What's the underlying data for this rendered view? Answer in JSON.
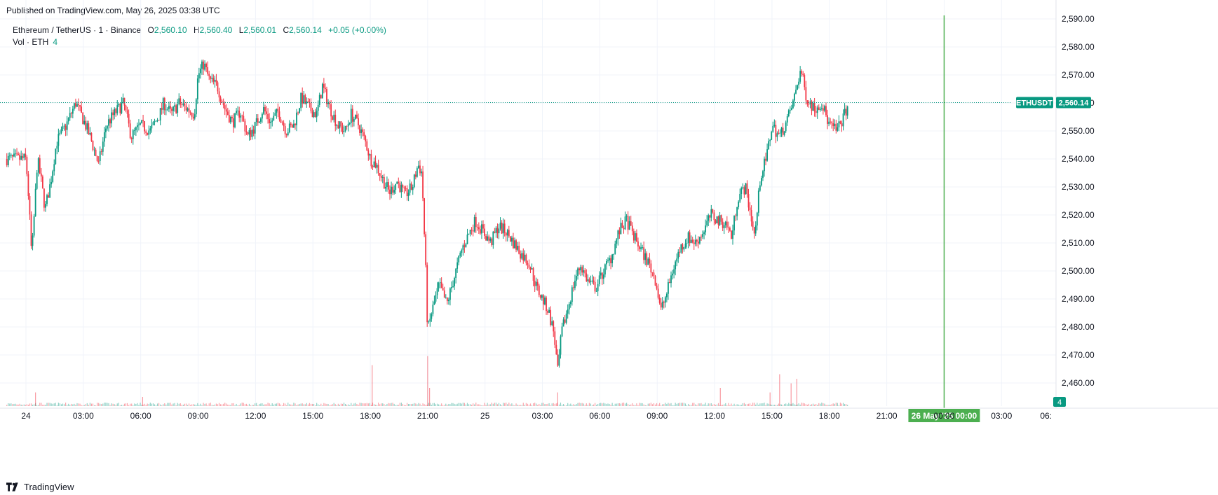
{
  "header": {
    "published": "Published on TradingView.com, May 26, 2025 03:38 UTC"
  },
  "legend": {
    "symbol": "Ethereum / TetherUS · 1 · Binance",
    "o_label": "O",
    "o_value": "2,560.10",
    "h_label": "H",
    "h_value": "2,560.40",
    "l_label": "L",
    "l_value": "2,560.01",
    "c_label": "C",
    "c_value": "2,560.14",
    "change": "+0.05 (+0.00%)",
    "vol_label": "Vol · ETH",
    "vol_value": "4"
  },
  "footer": {
    "brand": "TradingView"
  },
  "colors": {
    "up": "#089981",
    "down": "#f23645",
    "crosshair": "#22ab94",
    "grid": "#f0f3fa",
    "price_tag": "#089981",
    "time_tag": "#4caf50"
  },
  "chart_data": {
    "type": "candlestick",
    "symbol": "ETHUSDT",
    "interval": "1",
    "last_price_label": "2,560.14",
    "last_price": 2560.14,
    "volume_label": "4",
    "ylim": [
      2455,
      2590
    ],
    "y_ticks": [
      "2,460.00",
      "2,470.00",
      "2,480.00",
      "2,490.00",
      "2,500.00",
      "2,510.00",
      "2,520.00",
      "2,530.00",
      "2,540.00",
      "2,550.00",
      "2,560.00",
      "2,570.00",
      "2,580.00",
      "2,590.00"
    ],
    "x_ticks": [
      "24",
      "03:00",
      "06:00",
      "09:00",
      "12:00",
      "15:00",
      "18:00",
      "21:00",
      "25",
      "03:00",
      "06:00",
      "09:00",
      "12:00",
      "15:00",
      "18:00",
      "21:00",
      "00:00",
      "03:00",
      "06:"
    ],
    "crosshair_time_label": "26 May '25   00:00",
    "price_path": [
      [
        0,
        2540
      ],
      [
        0.15,
        2525
      ],
      [
        0.3,
        2505
      ],
      [
        0.45,
        2522
      ],
      [
        0.6,
        2540
      ],
      [
        0.8,
        2532
      ],
      [
        1.0,
        2522
      ],
      [
        1.3,
        2532
      ],
      [
        1.6,
        2546
      ],
      [
        2.1,
        2552
      ],
      [
        2.6,
        2560
      ],
      [
        3.0,
        2554
      ],
      [
        3.4,
        2547
      ],
      [
        3.8,
        2538
      ],
      [
        4.2,
        2552
      ],
      [
        4.6,
        2556
      ],
      [
        5.1,
        2560
      ],
      [
        5.5,
        2548
      ],
      [
        6.0,
        2552
      ],
      [
        6.5,
        2550
      ],
      [
        7.0,
        2556
      ],
      [
        7.2,
        2560
      ],
      [
        7.6,
        2556
      ],
      [
        8.0,
        2560
      ],
      [
        8.4,
        2558
      ],
      [
        8.8,
        2556
      ],
      [
        9.0,
        2570
      ],
      [
        9.3,
        2574
      ],
      [
        9.6,
        2568
      ],
      [
        10.0,
        2566
      ],
      [
        10.4,
        2558
      ],
      [
        10.8,
        2553
      ],
      [
        11.2,
        2557
      ],
      [
        11.6,
        2548
      ],
      [
        12.0,
        2552
      ],
      [
        12.4,
        2558
      ],
      [
        12.8,
        2553
      ],
      [
        13.2,
        2557
      ],
      [
        13.6,
        2550
      ],
      [
        14.0,
        2552
      ],
      [
        14.4,
        2562
      ],
      [
        14.8,
        2558
      ],
      [
        15.2,
        2556
      ],
      [
        15.5,
        2566
      ],
      [
        15.9,
        2558
      ],
      [
        16.3,
        2552
      ],
      [
        16.7,
        2550
      ],
      [
        17.0,
        2556
      ],
      [
        17.4,
        2552
      ],
      [
        17.8,
        2545
      ],
      [
        18.0,
        2540
      ],
      [
        18.3,
        2538
      ],
      [
        18.7,
        2532
      ],
      [
        19.0,
        2528
      ],
      [
        19.4,
        2532
      ],
      [
        19.8,
        2527
      ],
      [
        20.2,
        2530
      ],
      [
        20.5,
        2538
      ],
      [
        20.7,
        2535
      ],
      [
        20.9,
        2500
      ],
      [
        21.0,
        2478
      ],
      [
        21.2,
        2485
      ],
      [
        21.6,
        2495
      ],
      [
        22.0,
        2488
      ],
      [
        22.4,
        2498
      ],
      [
        22.8,
        2508
      ],
      [
        23.2,
        2514
      ],
      [
        23.5,
        2518
      ],
      [
        23.9,
        2514
      ],
      [
        24.3,
        2510
      ],
      [
        24.7,
        2516
      ],
      [
        25.1,
        2514
      ],
      [
        25.5,
        2510
      ],
      [
        25.9,
        2506
      ],
      [
        26.3,
        2503
      ],
      [
        26.7,
        2494
      ],
      [
        27.0,
        2490
      ],
      [
        27.3,
        2486
      ],
      [
        27.6,
        2478
      ],
      [
        27.8,
        2464
      ],
      [
        28.0,
        2478
      ],
      [
        28.3,
        2486
      ],
      [
        28.7,
        2497
      ],
      [
        29.0,
        2502
      ],
      [
        29.4,
        2496
      ],
      [
        29.8,
        2494
      ],
      [
        30.2,
        2500
      ],
      [
        30.6,
        2505
      ],
      [
        31.0,
        2514
      ],
      [
        31.4,
        2518
      ],
      [
        31.8,
        2512
      ],
      [
        32.2,
        2507
      ],
      [
        32.6,
        2502
      ],
      [
        32.9,
        2497
      ],
      [
        33.2,
        2486
      ],
      [
        33.5,
        2492
      ],
      [
        33.8,
        2500
      ],
      [
        34.2,
        2508
      ],
      [
        34.6,
        2512
      ],
      [
        35.0,
        2510
      ],
      [
        35.4,
        2514
      ],
      [
        35.8,
        2520
      ],
      [
        36.2,
        2518
      ],
      [
        36.6,
        2517
      ],
      [
        36.9,
        2512
      ],
      [
        37.2,
        2526
      ],
      [
        37.6,
        2530
      ],
      [
        37.9,
        2520
      ],
      [
        38.1,
        2512
      ],
      [
        38.4,
        2534
      ],
      [
        38.7,
        2540
      ],
      [
        39.0,
        2552
      ],
      [
        39.4,
        2548
      ],
      [
        39.8,
        2554
      ],
      [
        40.1,
        2560
      ],
      [
        40.5,
        2572
      ],
      [
        40.8,
        2562
      ],
      [
        41.2,
        2558
      ],
      [
        41.6,
        2560
      ],
      [
        42.0,
        2552
      ],
      [
        42.4,
        2550
      ],
      [
        42.8,
        2556
      ],
      [
        43.0,
        2560
      ]
    ],
    "volume_spikes": [
      [
        0.5,
        3
      ],
      [
        6.1,
        2
      ],
      [
        18.1,
        9
      ],
      [
        21.0,
        11
      ],
      [
        21.1,
        4
      ],
      [
        27.8,
        3
      ],
      [
        36.3,
        4
      ],
      [
        38.9,
        3
      ],
      [
        39.4,
        7
      ],
      [
        40.0,
        5
      ],
      [
        40.3,
        6
      ]
    ]
  }
}
